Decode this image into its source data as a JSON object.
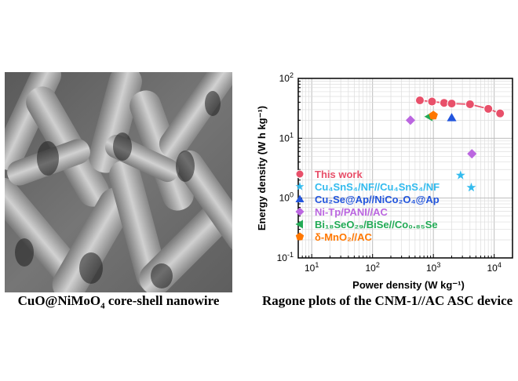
{
  "left_panel": {
    "caption_main": "CuO@NiMoO",
    "caption_sub": "4",
    "caption_rest": " core-shell nanowire"
  },
  "right_panel": {
    "caption": "Ragone plots of the CNM-1//AC ASC device"
  },
  "chart_data": {
    "type": "scatter",
    "xscale": "log",
    "yscale": "log",
    "xlim": [
      6,
      20000
    ],
    "ylim": [
      0.1,
      100
    ],
    "xlabel": "Power density (W kg⁻¹)",
    "ylabel": "Energy density (W h kg⁻¹)",
    "xticks": [
      {
        "v": 10,
        "base": "10",
        "exp": "1"
      },
      {
        "v": 100,
        "base": "10",
        "exp": "2"
      },
      {
        "v": 1000,
        "base": "10",
        "exp": "3"
      },
      {
        "v": 10000,
        "base": "10",
        "exp": "4"
      }
    ],
    "yticks": [
      {
        "v": 0.1,
        "base": "10",
        "exp": "-1"
      },
      {
        "v": 1,
        "base": "10",
        "exp": "0"
      },
      {
        "v": 10,
        "base": "10",
        "exp": "1"
      },
      {
        "v": 100,
        "base": "10",
        "exp": "2"
      }
    ],
    "grid": true,
    "legend_position": "bottom-left",
    "series": [
      {
        "name": "This work",
        "marker": "circle",
        "color": "#e8506a",
        "line": true,
        "points": [
          [
            600,
            43
          ],
          [
            950,
            41
          ],
          [
            1500,
            39
          ],
          [
            2000,
            38
          ],
          [
            4000,
            37
          ],
          [
            8000,
            31
          ],
          [
            12500,
            26
          ]
        ]
      },
      {
        "name": "Cu₄SnS₄/NF//Cu₄SnS₄/NF",
        "marker": "star",
        "color": "#33bbee",
        "points": [
          [
            2800,
            2.4
          ],
          [
            4200,
            1.5
          ]
        ]
      },
      {
        "name": "Cu₂Se@Ap//NiCo₂O₄@Ap",
        "marker": "triangle",
        "color": "#2255dd",
        "points": [
          [
            2000,
            22
          ]
        ]
      },
      {
        "name": "Ni-Tp/PANI//AC",
        "marker": "diamond",
        "color": "#bb66e0",
        "points": [
          [
            420,
            20
          ],
          [
            4300,
            5.5
          ]
        ]
      },
      {
        "name": "Bi₁₈SeO₂₉/BiSe//Co₀.₈₅Se",
        "marker": "tri-left",
        "color": "#22aa55",
        "points": [
          [
            850,
            23
          ]
        ]
      },
      {
        "name": "δ-MnO₂//AC",
        "marker": "pentagon",
        "color": "#ff7700",
        "points": [
          [
            1000,
            24
          ]
        ]
      }
    ]
  }
}
